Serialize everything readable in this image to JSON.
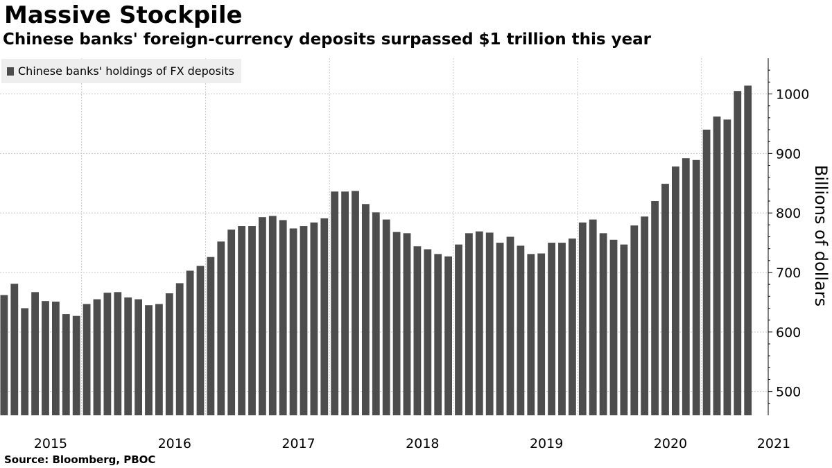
{
  "chart_data": {
    "type": "bar",
    "title": "Massive Stockpile",
    "subtitle": "Chinese banks' foreign-currency deposits surpassed $1 trillion this year",
    "legend": "Chinese banks' holdings of FX deposits",
    "ylabel": "Billions of dollars",
    "xlabel": "",
    "source": "Source: Bloomberg, PBOC",
    "ylim": [
      460,
      1060
    ],
    "yticks": [
      500,
      600,
      700,
      800,
      900,
      1000
    ],
    "year_labels": [
      {
        "label": "2015",
        "index": 4.5
      },
      {
        "label": "2016",
        "index": 16.5
      },
      {
        "label": "2017",
        "index": 28.5
      },
      {
        "label": "2018",
        "index": 40.5
      },
      {
        "label": "2019",
        "index": 52.5
      },
      {
        "label": "2020",
        "index": 64.5
      },
      {
        "label": "2021",
        "index": 74.5
      }
    ],
    "year_gridlines": [
      7.5,
      19.5,
      31.5,
      43.5,
      55.5,
      67.5
    ],
    "series": [
      {
        "name": "Chinese banks' holdings of FX deposits",
        "color": "#4d4d4d",
        "values": [
          662,
          681,
          640,
          667,
          652,
          651,
          630,
          627,
          647,
          655,
          666,
          667,
          658,
          655,
          645,
          647,
          665,
          682,
          703,
          711,
          726,
          752,
          772,
          778,
          778,
          793,
          795,
          788,
          774,
          778,
          784,
          791,
          836,
          836,
          837,
          815,
          801,
          789,
          768,
          766,
          744,
          739,
          731,
          727,
          747,
          766,
          769,
          767,
          750,
          760,
          745,
          731,
          732,
          750,
          750,
          757,
          784,
          789,
          766,
          755,
          747,
          779,
          794,
          820,
          849,
          878,
          892,
          889,
          940,
          962,
          957,
          1005,
          1014
        ]
      }
    ]
  }
}
